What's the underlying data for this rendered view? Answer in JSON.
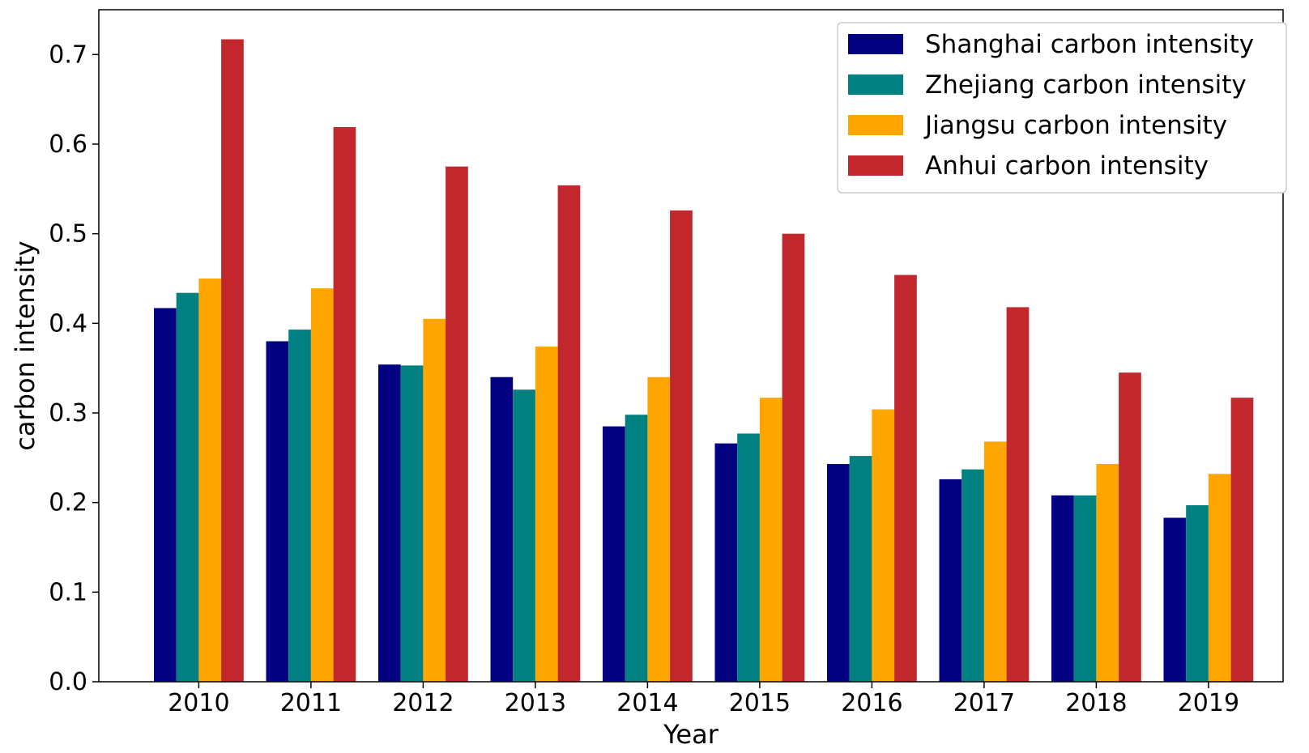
{
  "chart_data": {
    "type": "bar",
    "title": "",
    "xlabel": "Year",
    "ylabel": "carbon intensity",
    "ylim": [
      0,
      0.75
    ],
    "yticks": [
      "0.0",
      "0.1",
      "0.2",
      "0.3",
      "0.4",
      "0.5",
      "0.6",
      "0.7"
    ],
    "grid": false,
    "legend_position": "top-right",
    "categories": [
      "2010",
      "2011",
      "2012",
      "2013",
      "2014",
      "2015",
      "2016",
      "2017",
      "2018",
      "2019"
    ],
    "series": [
      {
        "name": "Shanghai carbon intensity",
        "color": "#000080",
        "values": [
          0.417,
          0.38,
          0.354,
          0.34,
          0.285,
          0.266,
          0.243,
          0.226,
          0.208,
          0.183
        ]
      },
      {
        "name": "Zhejiang carbon intensity",
        "color": "#008080",
        "values": [
          0.434,
          0.393,
          0.353,
          0.326,
          0.298,
          0.277,
          0.252,
          0.237,
          0.208,
          0.197
        ]
      },
      {
        "name": "Jiangsu carbon intensity",
        "color": "#FFA500",
        "values": [
          0.45,
          0.439,
          0.405,
          0.374,
          0.34,
          0.317,
          0.304,
          0.268,
          0.243,
          0.232
        ]
      },
      {
        "name": "Anhui carbon intensity",
        "color": "#C1272D",
        "values": [
          0.717,
          0.619,
          0.575,
          0.554,
          0.526,
          0.5,
          0.454,
          0.418,
          0.345,
          0.317
        ]
      }
    ]
  }
}
